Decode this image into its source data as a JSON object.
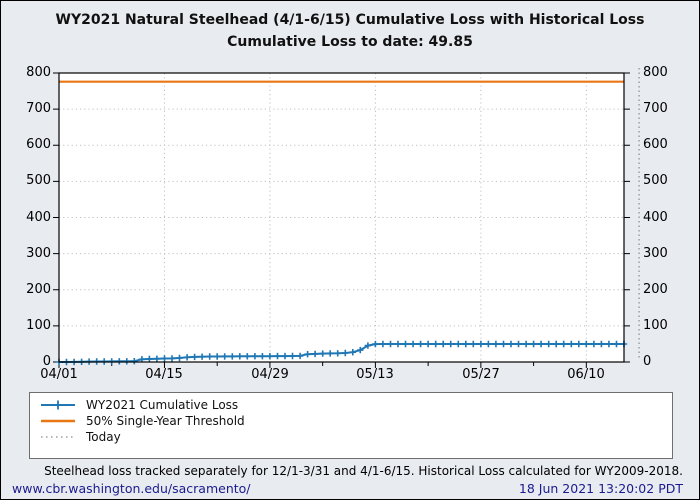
{
  "title": {
    "line1": "WY2021 Natural Steelhead (4/1-6/15) Cumulative Loss with Historical Loss",
    "line2": "Cumulative Loss to date: 49.85"
  },
  "colors": {
    "background": "#e8ebf0",
    "plot_background": "#ffffff",
    "series_blue": "#1f77b4",
    "threshold_orange": "#e87613",
    "today_gray": "#8c8c8c",
    "grid_gray": "#c0c0c0",
    "link_navy": "#1b1b8e"
  },
  "chart_data": {
    "type": "line",
    "title": "WY2021 Natural Steelhead (4/1-6/15) Cumulative Loss with Historical Loss",
    "subtitle": "Cumulative Loss to date: 49.85",
    "cumulative_loss_to_date": 49.85,
    "grid": true,
    "y_axis": {
      "range": [
        0,
        800
      ],
      "ticks": [
        0,
        100,
        200,
        300,
        400,
        500,
        600,
        700,
        800
      ],
      "sides": "both"
    },
    "x_axis": {
      "range_days": 75,
      "major_ticks": [
        {
          "label": "04/01",
          "day": 0
        },
        {
          "label": "04/15",
          "day": 14
        },
        {
          "label": "04/29",
          "day": 28
        },
        {
          "label": "05/13",
          "day": 42
        },
        {
          "label": "05/27",
          "day": 56
        },
        {
          "label": "06/10",
          "day": 70
        }
      ],
      "minor_tick_days": [
        7,
        21,
        35,
        49,
        63
      ]
    },
    "series": [
      {
        "name": "WY2021 Cumulative Loss",
        "type": "line+marker",
        "marker": "plus",
        "color": "#1f77b4",
        "dates": [
          "04/01",
          "04/02",
          "04/03",
          "04/04",
          "04/05",
          "04/06",
          "04/07",
          "04/08",
          "04/09",
          "04/10",
          "04/11",
          "04/12",
          "04/13",
          "04/14",
          "04/15",
          "04/16",
          "04/17",
          "04/18",
          "04/19",
          "04/20",
          "04/21",
          "04/22",
          "04/23",
          "04/24",
          "04/25",
          "04/26",
          "04/27",
          "04/28",
          "04/29",
          "04/30",
          "05/01",
          "05/02",
          "05/03",
          "05/04",
          "05/05",
          "05/06",
          "05/07",
          "05/08",
          "05/09",
          "05/10",
          "05/11",
          "05/12",
          "05/13",
          "05/14",
          "05/15",
          "05/16",
          "05/17",
          "05/18",
          "05/19",
          "05/20",
          "05/21",
          "05/22",
          "05/23",
          "05/24",
          "05/25",
          "05/26",
          "05/27",
          "05/28",
          "05/29",
          "05/30",
          "05/31",
          "06/01",
          "06/02",
          "06/03",
          "06/04",
          "06/05",
          "06/06",
          "06/07",
          "06/08",
          "06/09",
          "06/10",
          "06/11",
          "06/12",
          "06/13",
          "06/14",
          "06/15"
        ],
        "values": [
          0.0,
          0.0,
          0.3,
          0.6,
          1.0,
          1.3,
          1.3,
          1.6,
          1.9,
          1.9,
          2.2,
          7.5,
          8.4,
          8.8,
          9.7,
          10.0,
          11.0,
          12.9,
          14.2,
          14.8,
          15.1,
          15.1,
          15.4,
          15.4,
          15.7,
          15.7,
          16.0,
          16.0,
          16.0,
          16.3,
          16.3,
          16.6,
          17.0,
          21.5,
          22.4,
          23.3,
          23.9,
          24.2,
          25.0,
          27.0,
          33.0,
          45.5,
          49.5,
          49.85,
          49.85,
          49.85,
          49.85,
          49.85,
          49.85,
          49.85,
          49.85,
          49.85,
          49.85,
          49.85,
          49.85,
          49.85,
          49.85,
          49.85,
          49.85,
          49.85,
          49.85,
          49.85,
          49.85,
          49.85,
          49.85,
          49.85,
          49.85,
          49.85,
          49.85,
          49.85,
          49.85,
          49.85,
          49.85,
          49.85,
          49.85,
          49.85
        ]
      },
      {
        "name": "50% Single-Year Threshold",
        "type": "hline",
        "color": "#e87613",
        "value": 776
      },
      {
        "name": "Today",
        "type": "vline-dotted",
        "color": "#8c8c8c",
        "position_day": 77
      }
    ]
  },
  "legend": {
    "items": [
      {
        "label": "WY2021 Cumulative Loss"
      },
      {
        "label": "50% Single-Year Threshold"
      },
      {
        "label": "Today"
      }
    ]
  },
  "footer": {
    "note": "Steelhead loss tracked separately for 12/1-3/31 and 4/1-6/15. Historical Loss calculated for WY2009-2018.",
    "url": "www.cbr.washington.edu/sacramento/",
    "timestamp": "18 Jun 2021 13:20:02 PDT"
  }
}
